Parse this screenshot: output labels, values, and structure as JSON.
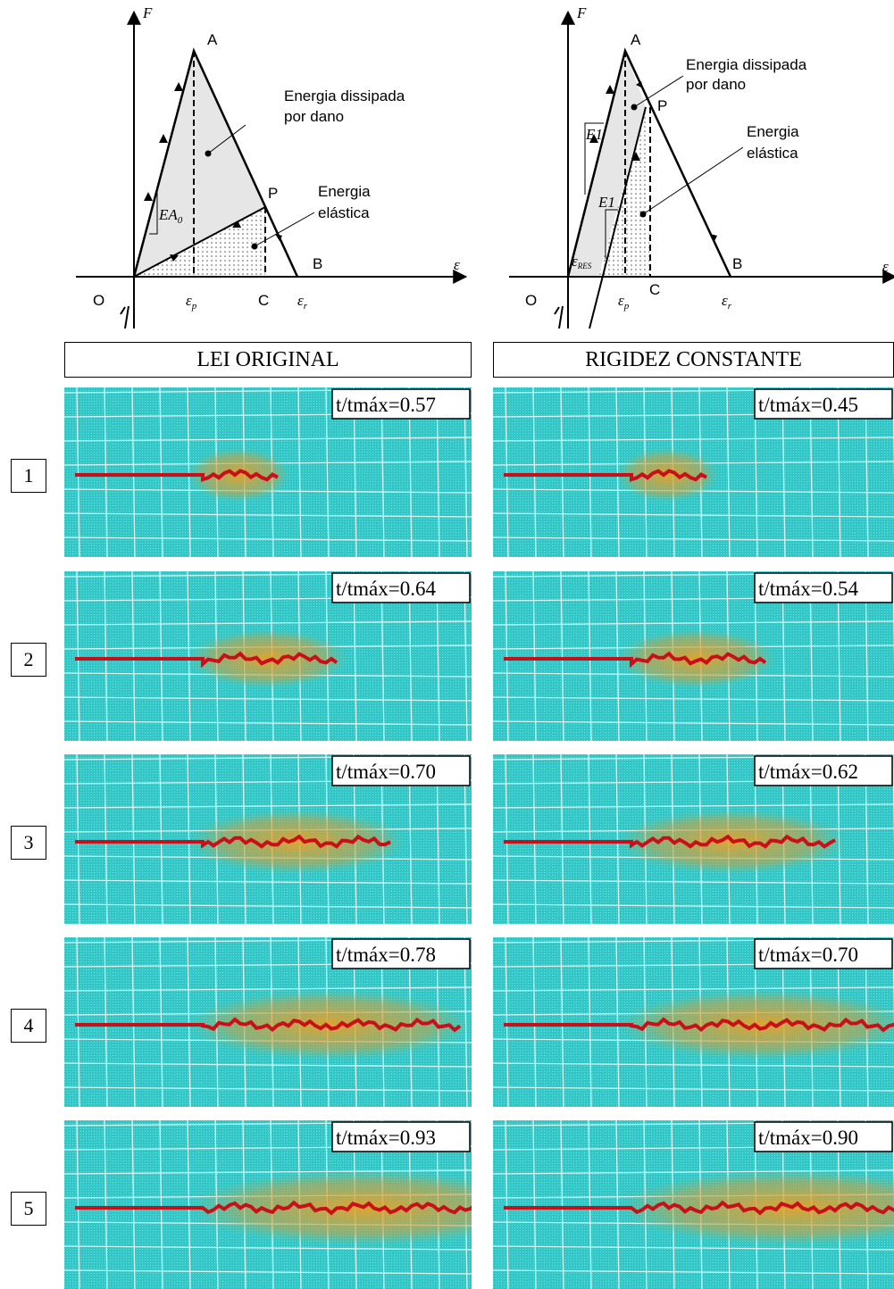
{
  "diagrams": [
    {
      "axis_force": "F",
      "axis_strain": "ε",
      "origin": "O",
      "point_a": "A",
      "point_p": "P",
      "point_b": "B",
      "point_c": "C",
      "dissipated_line1": "Energia dissipada",
      "dissipated_line2": "por dano",
      "elastic_line1": "Energia",
      "elastic_line2": "elástica",
      "eps_p": {
        "base": "ε",
        "sub": "p"
      },
      "eps_r": {
        "base": "ε",
        "sub": "r"
      },
      "stiffness": {
        "base": "EA",
        "sub": "0"
      }
    },
    {
      "axis_force": "F",
      "axis_strain": "ε",
      "origin": "O",
      "point_a": "A",
      "point_p": "P",
      "point_b": "B",
      "point_c": "C",
      "dissipated_line1": "Energia dissipada",
      "dissipated_line2": "por dano",
      "elastic_line1": "Energia",
      "elastic_line2": "elástica",
      "eps_p": {
        "base": "ε",
        "sub": "p"
      },
      "eps_r": {
        "base": "ε",
        "sub": "r"
      },
      "eps_res": {
        "base": "ε",
        "sub": "RES"
      },
      "stiffness_initial": "E1",
      "stiffness_reload": "E1"
    }
  ],
  "rows": [
    "1",
    "2",
    "3",
    "4",
    "5"
  ],
  "columns": [
    {
      "header": "LEI ORIGINAL",
      "times": [
        "t/tmáx=0.57",
        "t/tmáx=0.64",
        "t/tmáx=0.70",
        "t/tmáx=0.78",
        "t/tmáx=0.93"
      ]
    },
    {
      "header": "RIGIDEZ CONSTANTE",
      "times": [
        "t/tmáx=0.45",
        "t/tmáx=0.54",
        "t/tmáx=0.62",
        "t/tmáx=0.70",
        "t/tmáx=0.90"
      ]
    }
  ]
}
